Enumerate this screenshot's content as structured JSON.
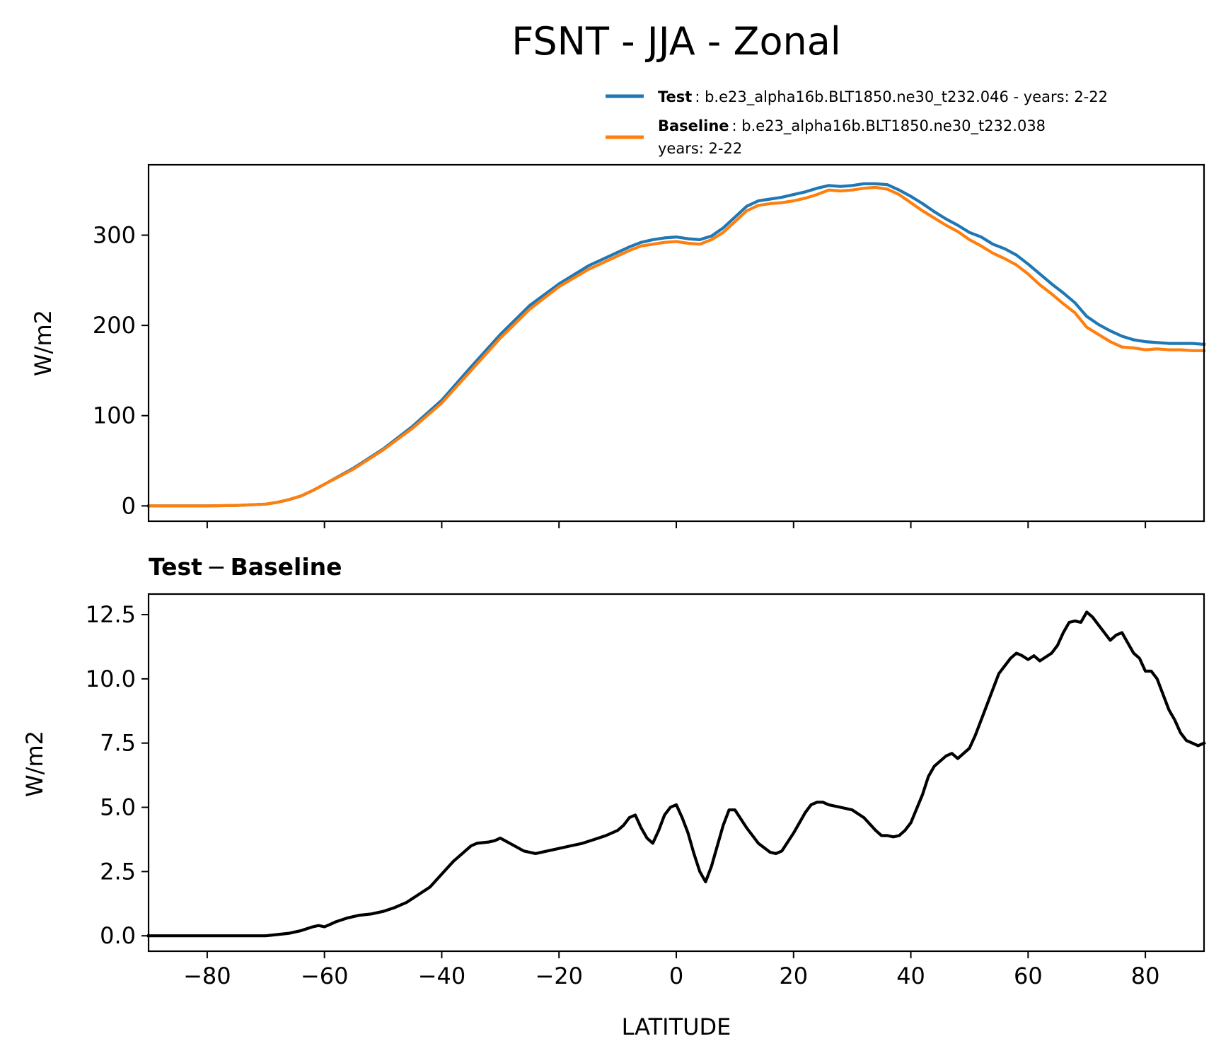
{
  "title": "FSNT - JJA - Zonal",
  "legend": {
    "test_label": "Test",
    "test_desc": ": b.e23_alpha16b.BLT1850.ne30_t232.046 - years: 2-22",
    "baseline_label": "Baseline",
    "baseline_desc": ": b.e23_alpha16b.BLT1850.ne30_t232.038",
    "baseline_desc2": "years: 2-22"
  },
  "colors": {
    "test": "#1f77b4",
    "baseline": "#ff7f0e",
    "diff": "#000000"
  },
  "chart_data": [
    {
      "type": "line",
      "title": "",
      "xlabel": "",
      "ylabel": "W/m2",
      "xlim": [
        -90,
        90
      ],
      "ylim": [
        -17,
        378
      ],
      "xticks": [
        -80,
        -60,
        -40,
        -20,
        0,
        20,
        40,
        60,
        80
      ],
      "yticks": [
        0,
        100,
        200,
        300
      ],
      "x": [
        -90,
        -80,
        -75,
        -70,
        -68,
        -66,
        -64,
        -62,
        -60,
        -55,
        -50,
        -45,
        -40,
        -35,
        -30,
        -25,
        -20,
        -15,
        -10,
        -8,
        -6,
        -4,
        -2,
        0,
        2,
        4,
        6,
        8,
        10,
        12,
        14,
        16,
        18,
        20,
        22,
        24,
        26,
        28,
        30,
        32,
        34,
        36,
        38,
        40,
        42,
        44,
        46,
        48,
        50,
        52,
        54,
        56,
        58,
        60,
        62,
        64,
        66,
        68,
        70,
        72,
        74,
        76,
        78,
        80,
        82,
        84,
        86,
        88,
        90
      ],
      "series": [
        {
          "name": "Test",
          "values": [
            0,
            0,
            0.5,
            2,
            4,
            7,
            11,
            17,
            24,
            42,
            63,
            88,
            117,
            154,
            190,
            222,
            246,
            266,
            281,
            287,
            292,
            295,
            297,
            298,
            296,
            295,
            299,
            308,
            320,
            332,
            338,
            340,
            342,
            345,
            348,
            352,
            355,
            354,
            355,
            357,
            357,
            356,
            350,
            343,
            335,
            326,
            318,
            311,
            303,
            298,
            290,
            285,
            278,
            268,
            257,
            246,
            236,
            225,
            210,
            201,
            194,
            188,
            184,
            182,
            181,
            180,
            180,
            180,
            179
          ]
        },
        {
          "name": "Baseline",
          "values": [
            0,
            0,
            0.5,
            2,
            4,
            7,
            11,
            17,
            24,
            41,
            62,
            86,
            114,
            150,
            186,
            218,
            243,
            262,
            277,
            283,
            288,
            290,
            292,
            293,
            291,
            290,
            295,
            303,
            315,
            327,
            333,
            335,
            336,
            338,
            341,
            345,
            350,
            349,
            350,
            352,
            353,
            351,
            345,
            336,
            327,
            319,
            311,
            304,
            295,
            288,
            280,
            274,
            267,
            257,
            245,
            235,
            224,
            214,
            198,
            190,
            182,
            176,
            175,
            173,
            174,
            173,
            173,
            172,
            172
          ]
        }
      ]
    },
    {
      "type": "line",
      "title": "Test − Baseline",
      "title_bold_left": "Test",
      "title_minus": "−",
      "title_bold_right": "Baseline",
      "xlabel": "LATITUDE",
      "ylabel": "W/m2",
      "xlim": [
        -90,
        90
      ],
      "ylim": [
        -0.6,
        13.3
      ],
      "xticks": [
        -80,
        -60,
        -40,
        -20,
        0,
        20,
        40,
        60,
        80
      ],
      "yticks": [
        0.0,
        2.5,
        5.0,
        7.5,
        10.0,
        12.5
      ],
      "ytick_labels": [
        "0.0",
        "2.5",
        "5.0",
        "7.5",
        "10.0",
        "12.5"
      ],
      "x": [
        -90,
        -70,
        -66,
        -64,
        -62,
        -61,
        -60,
        -59,
        -58,
        -56,
        -54,
        -52,
        -50,
        -48,
        -46,
        -44,
        -42,
        -40,
        -38,
        -36,
        -35,
        -34,
        -32,
        -31,
        -30,
        -28,
        -26,
        -24,
        -22,
        -20,
        -18,
        -16,
        -14,
        -12,
        -10,
        -9,
        -8,
        -7,
        -6,
        -5,
        -4,
        -3,
        -2,
        -1,
        0,
        1,
        2,
        3,
        4,
        5,
        6,
        7,
        8,
        9,
        10,
        12,
        14,
        16,
        17,
        18,
        20,
        22,
        23,
        24,
        25,
        26,
        28,
        30,
        32,
        34,
        35,
        36,
        37,
        38,
        39,
        40,
        42,
        43,
        44,
        46,
        47,
        48,
        50,
        51,
        52,
        53,
        54,
        55,
        56,
        57,
        58,
        59,
        60,
        61,
        62,
        64,
        65,
        66,
        67,
        68,
        69,
        70,
        71,
        72,
        73,
        74,
        75,
        76,
        77,
        78,
        79,
        80,
        81,
        82,
        83,
        84,
        85,
        86,
        87,
        88,
        89,
        90
      ],
      "series": [
        {
          "name": "Test - Baseline",
          "values": [
            0,
            0,
            0.1,
            0.2,
            0.35,
            0.4,
            0.35,
            0.45,
            0.55,
            0.7,
            0.8,
            0.85,
            0.95,
            1.1,
            1.3,
            1.6,
            1.9,
            2.4,
            2.9,
            3.3,
            3.5,
            3.6,
            3.65,
            3.7,
            3.8,
            3.55,
            3.3,
            3.2,
            3.3,
            3.4,
            3.5,
            3.6,
            3.75,
            3.9,
            4.1,
            4.3,
            4.6,
            4.7,
            4.2,
            3.8,
            3.6,
            4.1,
            4.7,
            5.0,
            5.1,
            4.6,
            4.0,
            3.2,
            2.5,
            2.1,
            2.7,
            3.5,
            4.3,
            4.9,
            4.9,
            4.2,
            3.6,
            3.25,
            3.2,
            3.3,
            4.0,
            4.8,
            5.1,
            5.2,
            5.2,
            5.1,
            5.0,
            4.9,
            4.6,
            4.1,
            3.9,
            3.9,
            3.85,
            3.9,
            4.1,
            4.4,
            5.5,
            6.2,
            6.6,
            7.0,
            7.1,
            6.9,
            7.3,
            7.8,
            8.4,
            9.0,
            9.6,
            10.2,
            10.5,
            10.8,
            11.0,
            10.9,
            10.75,
            10.9,
            10.7,
            11.0,
            11.3,
            11.8,
            12.2,
            12.25,
            12.2,
            12.6,
            12.4,
            12.1,
            11.8,
            11.5,
            11.7,
            11.8,
            11.4,
            11.0,
            10.8,
            10.3,
            10.3,
            10.0,
            9.4,
            8.8,
            8.4,
            7.9,
            7.6,
            7.5,
            7.4,
            7.5
          ]
        }
      ]
    }
  ]
}
